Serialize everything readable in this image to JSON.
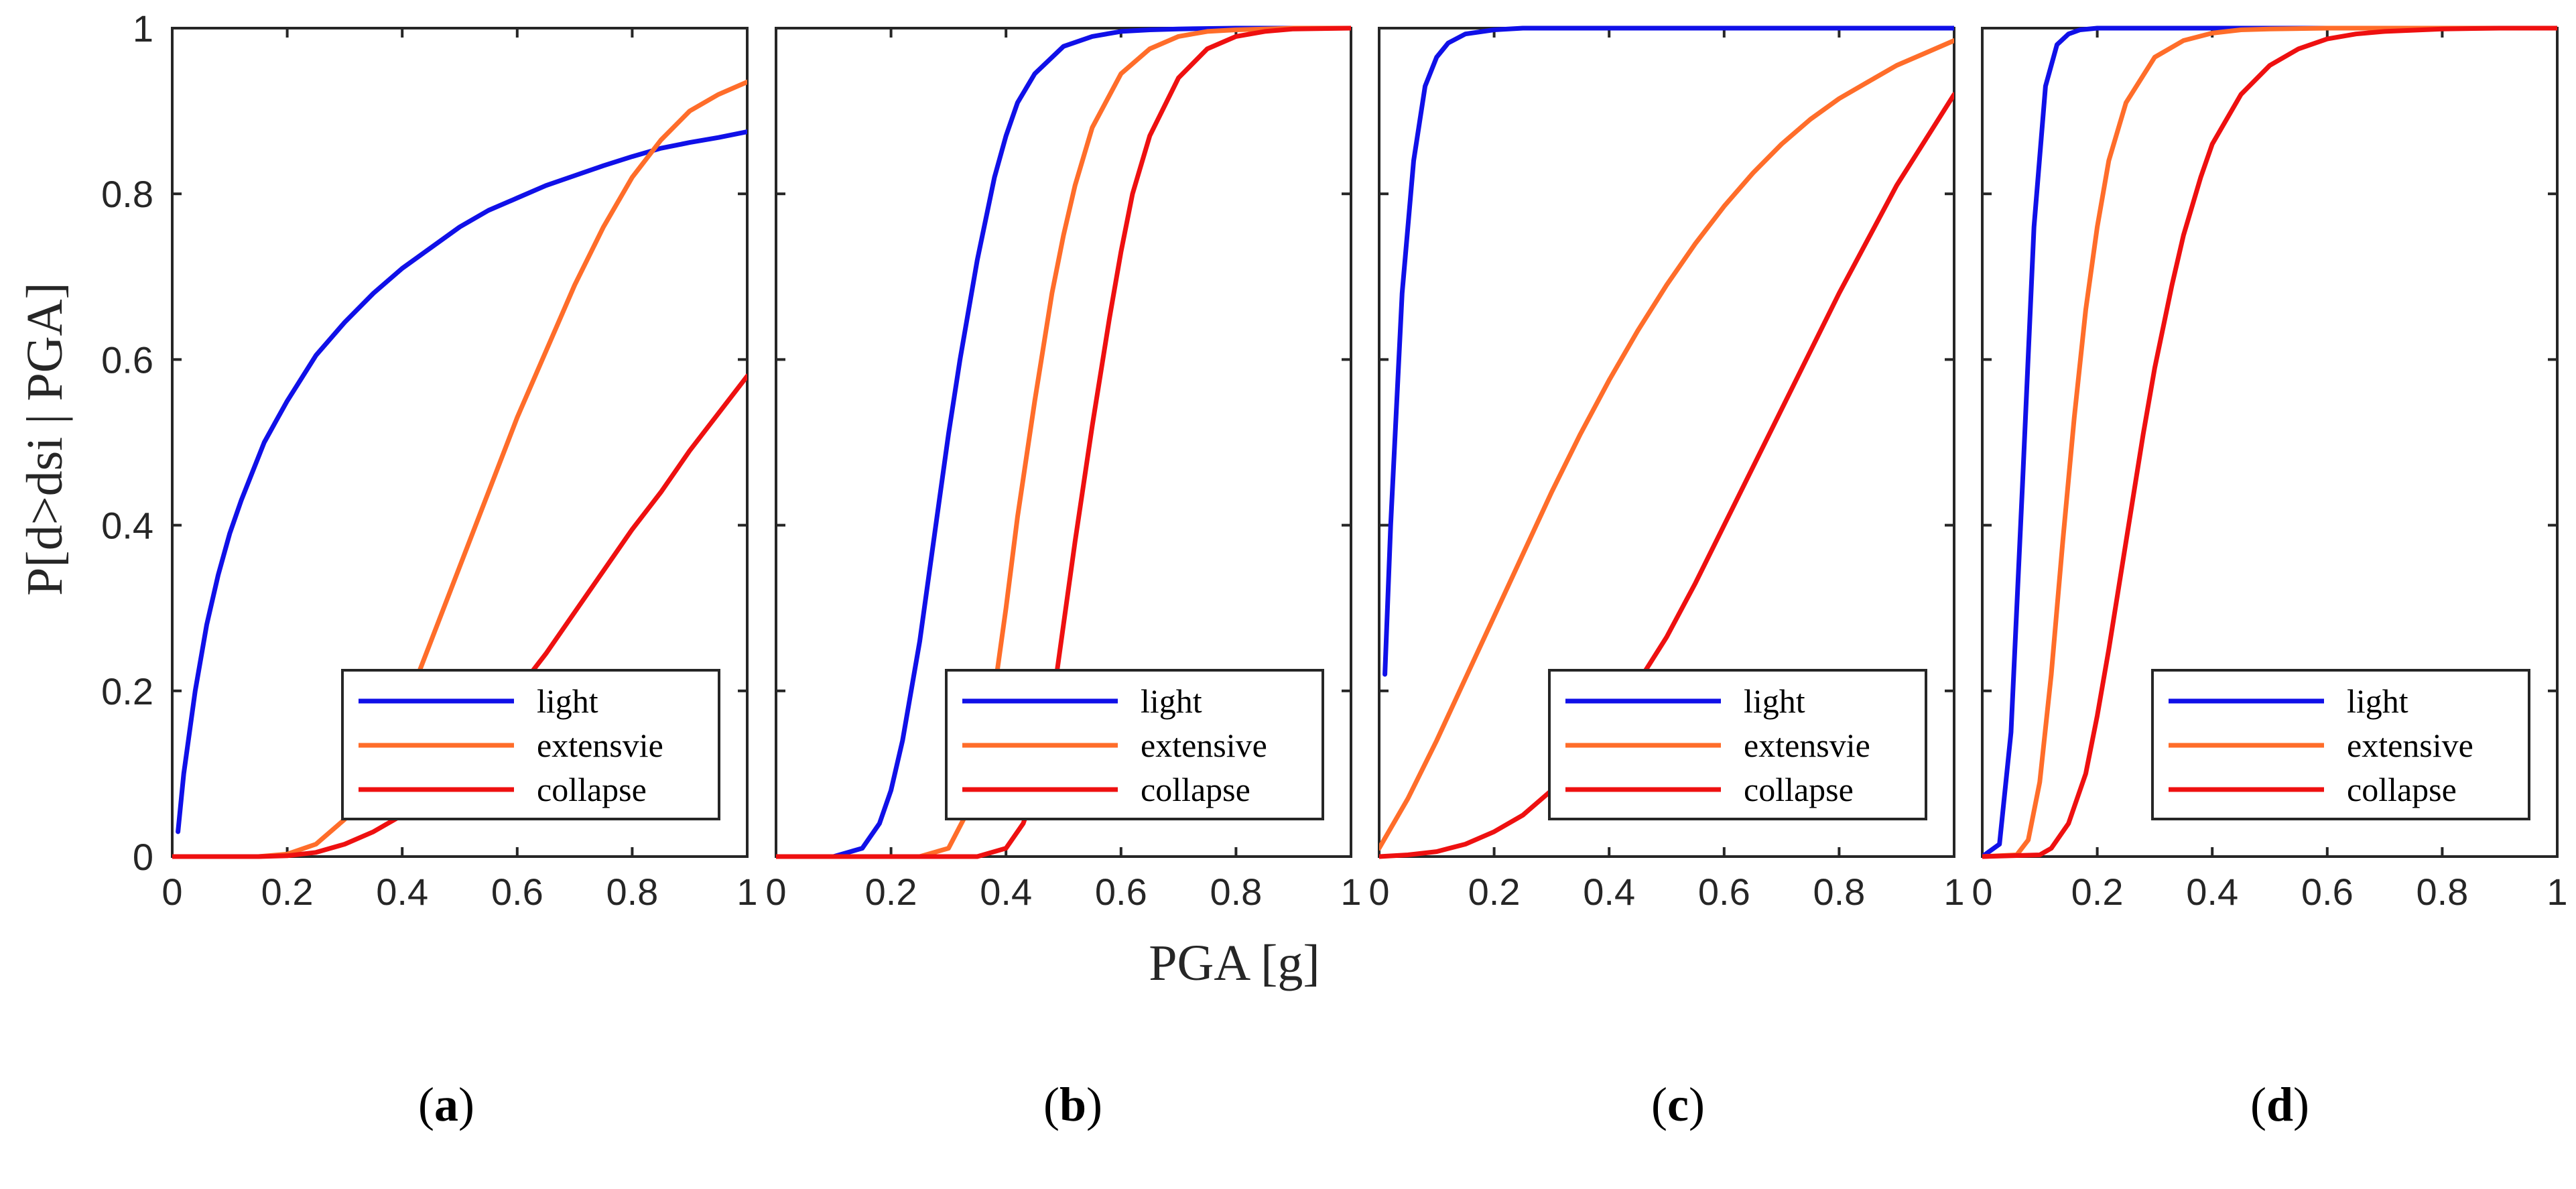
{
  "figure": {
    "ylabel": "P[d>dsi | PGA]",
    "xlabel": "PGA [g]"
  },
  "colors": {
    "light": "#1010e8",
    "extensive": "#ff6d2a",
    "collapse": "#ee1010",
    "axis": "#262626"
  },
  "chart_data": [
    {
      "type": "line",
      "panel": "a",
      "xlim": [
        0,
        1
      ],
      "ylim": [
        0,
        1
      ],
      "xticks": [
        "0",
        "0.2",
        "0.4",
        "0.6",
        "0.8",
        "1"
      ],
      "yticks": [
        "0",
        "0.2",
        "0.4",
        "0.6",
        "0.8",
        "1"
      ],
      "legend_position": "bottom-right",
      "legend": [
        "light",
        "extensvie",
        "collapse"
      ],
      "series": [
        {
          "name": "light",
          "x": [
            0.01,
            0.02,
            0.04,
            0.06,
            0.08,
            0.1,
            0.12,
            0.14,
            0.16,
            0.18,
            0.2,
            0.25,
            0.3,
            0.35,
            0.4,
            0.45,
            0.5,
            0.55,
            0.6,
            0.65,
            0.7,
            0.75,
            0.8,
            0.85,
            0.9,
            0.95,
            1.0
          ],
          "y": [
            0.03,
            0.1,
            0.2,
            0.28,
            0.34,
            0.39,
            0.43,
            0.465,
            0.5,
            0.525,
            0.55,
            0.605,
            0.645,
            0.68,
            0.71,
            0.735,
            0.76,
            0.78,
            0.795,
            0.81,
            0.822,
            0.834,
            0.845,
            0.855,
            0.862,
            0.868,
            0.875
          ]
        },
        {
          "name": "extensvie",
          "x": [
            0,
            0.1,
            0.15,
            0.2,
            0.25,
            0.3,
            0.35,
            0.4,
            0.45,
            0.5,
            0.55,
            0.6,
            0.65,
            0.7,
            0.75,
            0.8,
            0.85,
            0.9,
            0.95,
            1.0
          ],
          "y": [
            0,
            0,
            0,
            0.003,
            0.015,
            0.045,
            0.1,
            0.17,
            0.26,
            0.35,
            0.44,
            0.53,
            0.61,
            0.69,
            0.76,
            0.82,
            0.865,
            0.9,
            0.92,
            0.935
          ]
        },
        {
          "name": "collapse",
          "x": [
            0,
            0.15,
            0.2,
            0.25,
            0.3,
            0.35,
            0.4,
            0.45,
            0.5,
            0.55,
            0.6,
            0.65,
            0.7,
            0.75,
            0.8,
            0.85,
            0.9,
            0.95,
            1.0
          ],
          "y": [
            0,
            0,
            0.001,
            0.005,
            0.015,
            0.03,
            0.05,
            0.08,
            0.115,
            0.155,
            0.2,
            0.245,
            0.295,
            0.345,
            0.395,
            0.44,
            0.49,
            0.535,
            0.58
          ]
        }
      ]
    },
    {
      "type": "line",
      "panel": "b",
      "xlim": [
        0,
        1
      ],
      "ylim": [
        0,
        1
      ],
      "xticks": [
        "0",
        "0.2",
        "0.4",
        "0.6",
        "0.8",
        "1"
      ],
      "yticks": [],
      "legend_position": "bottom-right",
      "legend": [
        "light",
        "extensive",
        "collapse"
      ],
      "series": [
        {
          "name": "light",
          "x": [
            0,
            0.1,
            0.15,
            0.18,
            0.2,
            0.22,
            0.25,
            0.28,
            0.3,
            0.32,
            0.35,
            0.38,
            0.4,
            0.42,
            0.45,
            0.5,
            0.55,
            0.6,
            0.65,
            0.7,
            0.8,
            0.9,
            1.0
          ],
          "y": [
            0,
            0,
            0.01,
            0.04,
            0.08,
            0.14,
            0.26,
            0.41,
            0.51,
            0.6,
            0.72,
            0.82,
            0.87,
            0.91,
            0.945,
            0.978,
            0.99,
            0.996,
            0.998,
            0.999,
            1,
            1,
            1
          ]
        },
        {
          "name": "extensive",
          "x": [
            0,
            0.25,
            0.3,
            0.33,
            0.35,
            0.38,
            0.4,
            0.42,
            0.45,
            0.48,
            0.5,
            0.52,
            0.55,
            0.6,
            0.65,
            0.7,
            0.75,
            0.8,
            0.9,
            1.0
          ],
          "y": [
            0,
            0,
            0.01,
            0.05,
            0.1,
            0.2,
            0.3,
            0.41,
            0.55,
            0.68,
            0.75,
            0.81,
            0.88,
            0.945,
            0.975,
            0.99,
            0.996,
            0.998,
            1,
            1
          ]
        },
        {
          "name": "collapse",
          "x": [
            0,
            0.35,
            0.4,
            0.43,
            0.45,
            0.48,
            0.5,
            0.52,
            0.55,
            0.58,
            0.6,
            0.62,
            0.65,
            0.7,
            0.75,
            0.8,
            0.85,
            0.9,
            1.0
          ],
          "y": [
            0,
            0,
            0.01,
            0.04,
            0.08,
            0.18,
            0.28,
            0.38,
            0.52,
            0.65,
            0.73,
            0.8,
            0.87,
            0.94,
            0.975,
            0.99,
            0.996,
            0.999,
            1
          ]
        }
      ]
    },
    {
      "type": "line",
      "panel": "c",
      "xlim": [
        0,
        1
      ],
      "ylim": [
        0,
        1
      ],
      "xticks": [
        "0",
        "0.2",
        "0.4",
        "0.6",
        "0.8",
        "1"
      ],
      "yticks": [],
      "legend_position": "bottom-right",
      "legend": [
        "light",
        "extensvie",
        "collapse"
      ],
      "series": [
        {
          "name": "light",
          "x": [
            0.01,
            0.02,
            0.04,
            0.06,
            0.08,
            0.1,
            0.12,
            0.15,
            0.2,
            0.25,
            0.3,
            0.4,
            0.6,
            0.8,
            1.0
          ],
          "y": [
            0.22,
            0.4,
            0.68,
            0.84,
            0.93,
            0.965,
            0.982,
            0.993,
            0.998,
            1,
            1,
            1,
            1,
            1,
            1
          ]
        },
        {
          "name": "extensvie",
          "x": [
            0,
            0.05,
            0.1,
            0.15,
            0.2,
            0.25,
            0.3,
            0.35,
            0.4,
            0.45,
            0.5,
            0.55,
            0.6,
            0.65,
            0.7,
            0.75,
            0.8,
            0.85,
            0.9,
            0.95,
            1.0
          ],
          "y": [
            0.01,
            0.07,
            0.14,
            0.215,
            0.29,
            0.365,
            0.44,
            0.51,
            0.575,
            0.635,
            0.69,
            0.74,
            0.785,
            0.825,
            0.86,
            0.89,
            0.915,
            0.935,
            0.955,
            0.97,
            0.985
          ]
        },
        {
          "name": "collapse",
          "x": [
            0,
            0.05,
            0.1,
            0.15,
            0.2,
            0.25,
            0.3,
            0.35,
            0.4,
            0.45,
            0.5,
            0.55,
            0.6,
            0.65,
            0.7,
            0.75,
            0.8,
            0.85,
            0.9,
            0.95,
            1.0
          ],
          "y": [
            0,
            0.002,
            0.006,
            0.015,
            0.03,
            0.05,
            0.08,
            0.115,
            0.16,
            0.21,
            0.265,
            0.33,
            0.4,
            0.47,
            0.54,
            0.61,
            0.68,
            0.745,
            0.81,
            0.865,
            0.92
          ]
        }
      ]
    },
    {
      "type": "line",
      "panel": "d",
      "xlim": [
        0,
        1
      ],
      "ylim": [
        0,
        1
      ],
      "xticks": [
        "0",
        "0.2",
        "0.4",
        "0.6",
        "0.8",
        "1"
      ],
      "yticks": [],
      "legend_position": "bottom-right",
      "legend": [
        "light",
        "extensive",
        "collapse"
      ],
      "series": [
        {
          "name": "light",
          "x": [
            0,
            0.03,
            0.05,
            0.07,
            0.09,
            0.11,
            0.13,
            0.15,
            0.17,
            0.2,
            0.25,
            0.3,
            0.4,
            0.5,
            0.6,
            0.8,
            1.0
          ],
          "y": [
            0,
            0.015,
            0.15,
            0.45,
            0.76,
            0.93,
            0.98,
            0.993,
            0.998,
            1,
            1,
            1,
            1,
            1,
            1,
            1,
            1
          ]
        },
        {
          "name": "extensive",
          "x": [
            0,
            0.06,
            0.08,
            0.1,
            0.12,
            0.14,
            0.16,
            0.18,
            0.2,
            0.22,
            0.25,
            0.3,
            0.35,
            0.4,
            0.45,
            0.5,
            0.6,
            0.7,
            0.8,
            1.0
          ],
          "y": [
            0,
            0.002,
            0.02,
            0.09,
            0.22,
            0.38,
            0.53,
            0.66,
            0.76,
            0.84,
            0.91,
            0.965,
            0.985,
            0.994,
            0.998,
            0.999,
            1,
            1,
            1,
            1
          ]
        },
        {
          "name": "collapse",
          "x": [
            0,
            0.1,
            0.12,
            0.15,
            0.18,
            0.2,
            0.22,
            0.25,
            0.28,
            0.3,
            0.33,
            0.35,
            0.38,
            0.4,
            0.45,
            0.5,
            0.55,
            0.6,
            0.65,
            0.7,
            0.8,
            0.9,
            1.0
          ],
          "y": [
            0,
            0.002,
            0.01,
            0.04,
            0.1,
            0.17,
            0.25,
            0.38,
            0.51,
            0.59,
            0.69,
            0.75,
            0.82,
            0.86,
            0.92,
            0.955,
            0.975,
            0.987,
            0.993,
            0.996,
            0.999,
            1,
            1
          ]
        }
      ]
    }
  ],
  "panel_labels": [
    "a",
    "b",
    "c",
    "d"
  ]
}
